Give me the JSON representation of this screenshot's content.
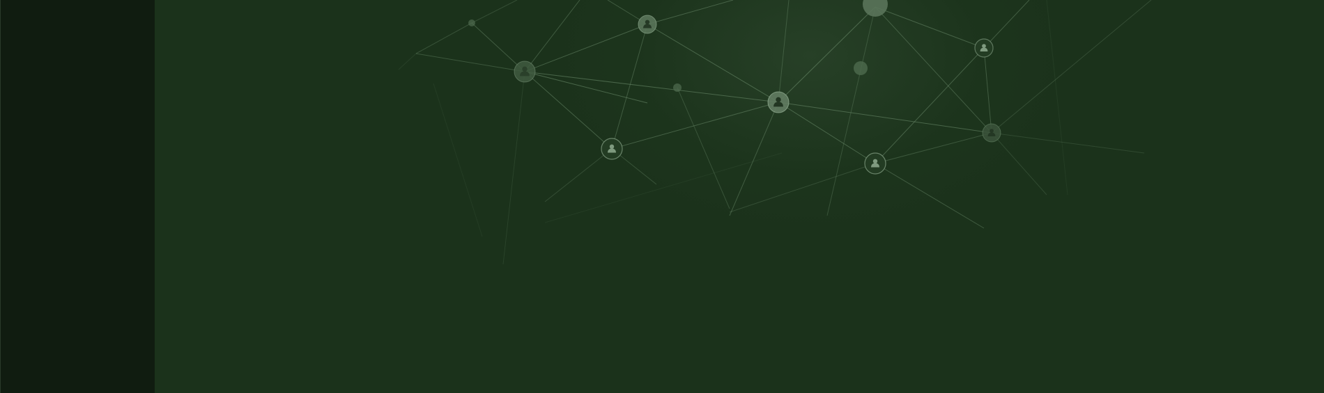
{
  "colors": {
    "sidebar_bg": "#101c10",
    "main_bg": "#1b321b",
    "line": "#6f8f6f",
    "node_fill": "#4e6a4e",
    "node_stroke": "#8aa58a",
    "icon": "#9fb89f"
  },
  "decoration": {
    "type": "people-network-illustration",
    "icon": "person-icon"
  }
}
